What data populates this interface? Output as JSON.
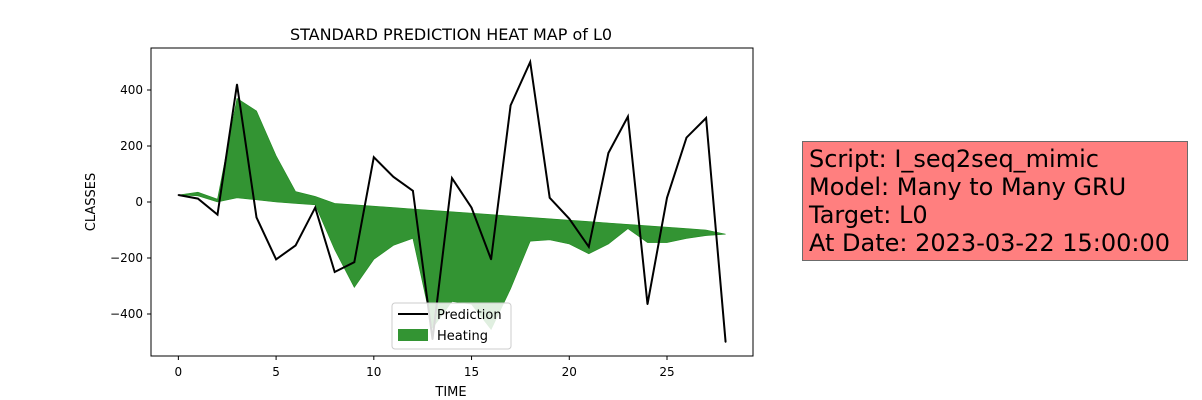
{
  "chart_data": {
    "type": "line",
    "title": "STANDARD PREDICTION HEAT MAP of L0",
    "xlabel": "TIME",
    "ylabel": "CLASSES",
    "xlim": [
      -1.4,
      29.4
    ],
    "ylim": [
      -550,
      550
    ],
    "xticks": [
      0,
      5,
      10,
      15,
      20,
      25
    ],
    "yticks": [
      -400,
      -200,
      0,
      200,
      400
    ],
    "x": [
      0,
      1,
      2,
      3,
      4,
      5,
      6,
      7,
      8,
      9,
      10,
      11,
      12,
      13,
      14,
      15,
      16,
      17,
      18,
      19,
      20,
      21,
      22,
      23,
      24,
      25,
      26,
      27,
      28
    ],
    "series": [
      {
        "name": "Prediction",
        "kind": "line",
        "color": "#000000",
        "values": [
          25,
          12,
          -45,
          420,
          -55,
          -205,
          -155,
          -20,
          -250,
          -215,
          160,
          90,
          40,
          -490,
          85,
          -20,
          -205,
          345,
          500,
          15,
          -60,
          -160,
          175,
          305,
          -365,
          15,
          230,
          300,
          -500
        ]
      },
      {
        "name": "Heating",
        "kind": "area",
        "color": "#228b22",
        "upper": [
          25,
          35,
          10,
          370,
          325,
          165,
          37,
          20,
          -5,
          -10,
          -15,
          -20,
          -25,
          -30,
          -35,
          -40,
          -45,
          -50,
          -55,
          -60,
          -65,
          -70,
          -75,
          -80,
          -85,
          -90,
          -95,
          -100,
          -115
        ],
        "lower": [
          25,
          22,
          0,
          15,
          8,
          0,
          -5,
          -10,
          -170,
          -305,
          -205,
          -155,
          -130,
          -450,
          -355,
          -365,
          -455,
          -310,
          -140,
          -135,
          -150,
          -185,
          -150,
          -95,
          -145,
          -145,
          -130,
          -120,
          -115
        ]
      }
    ],
    "legend": {
      "placement": "lower-center"
    },
    "grid": false
  },
  "info": {
    "script": "Script: I_seq2seq_mimic",
    "model": "Model: Many to Many GRU",
    "target": "Target: L0",
    "date": "At Date: 2023-03-22 15:00:00"
  },
  "colors": {
    "info_background": "#ff7f7f"
  }
}
